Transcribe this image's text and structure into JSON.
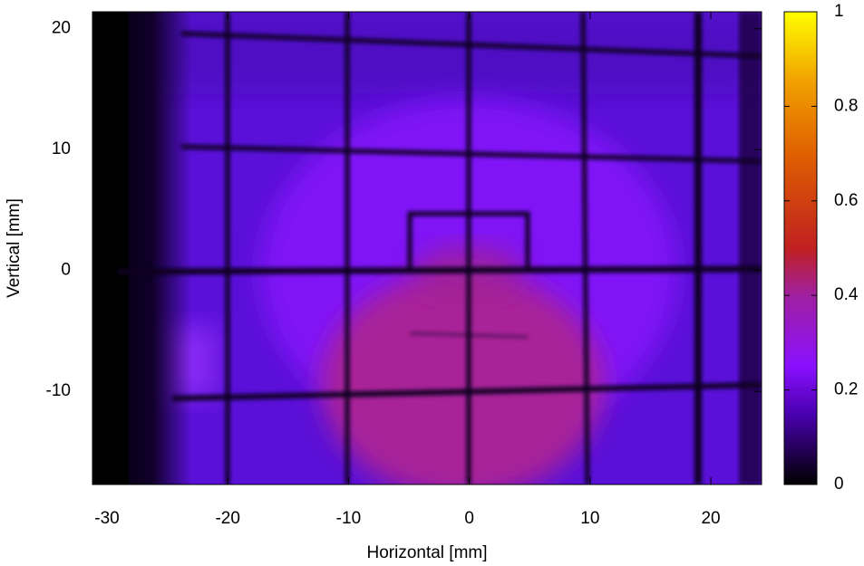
{
  "chart_data": {
    "type": "heatmap",
    "x_label": "Horizontal [mm]",
    "y_label": "Vertical [mm]",
    "xlim": [
      -31.2,
      24.2
    ],
    "xticks": [
      -30,
      -20,
      -10,
      0,
      10,
      20
    ],
    "ylim": [
      -17.7,
      21.4
    ],
    "yticks": [
      -10,
      0,
      10,
      20
    ],
    "colorbar": {
      "lim": [
        0,
        1
      ],
      "ticks": [
        0,
        0.2,
        0.4,
        0.6,
        0.8,
        1
      ],
      "palette": [
        {
          "value": 0,
          "color": "#000000"
        },
        {
          "value": 0.15,
          "color": "#4a00b0"
        },
        {
          "value": 0.25,
          "color": "#8a10ff"
        },
        {
          "value": 0.4,
          "color": "#a020a0"
        },
        {
          "value": 0.5,
          "color": "#c02020"
        },
        {
          "value": 0.7,
          "color": "#e06000"
        },
        {
          "value": 0.85,
          "color": "#f0a000"
        },
        {
          "value": 1,
          "color": "#ffff00"
        }
      ]
    }
  }
}
